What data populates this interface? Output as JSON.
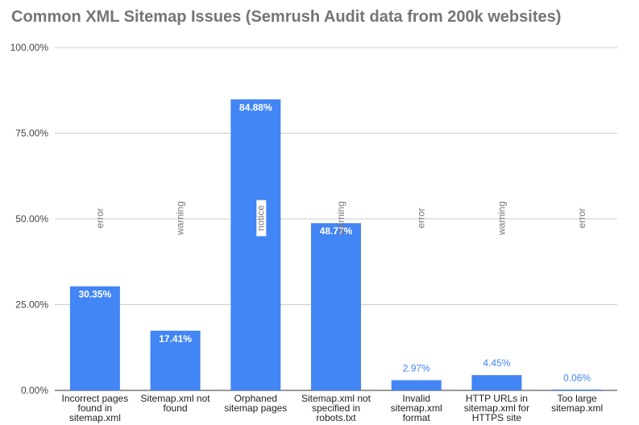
{
  "chart_data": {
    "type": "bar",
    "title": "Common XML Sitemap Issues (Semrush Audit data from 200k websites)",
    "xlabel": "",
    "ylabel": "",
    "ylim": [
      0,
      100
    ],
    "yticks": [
      "0.00%",
      "25.00%",
      "50.00%",
      "75.00%",
      "100.00%"
    ],
    "ytick_values": [
      0,
      25,
      50,
      75,
      100
    ],
    "grid": true,
    "bar_color": "#4285f4",
    "categories": [
      [
        "Incorrect pages",
        "found in",
        "sitemap.xml"
      ],
      [
        "Sitemap.xml not",
        "found"
      ],
      [
        "Orphaned",
        "sitemap pages"
      ],
      [
        "Sitemap.xml not",
        "specified in",
        "robots.txt"
      ],
      [
        "Invalid",
        "sitemap.xml",
        "format"
      ],
      [
        "HTTP URLs in",
        "sitemap.xml for",
        "HTTPS site"
      ],
      [
        "Too large",
        "sitemap.xml"
      ]
    ],
    "values": [
      30.35,
      17.41,
      84.88,
      48.77,
      2.97,
      4.45,
      0.06
    ],
    "data_labels": [
      "30.35%",
      "17.41%",
      "84.88%",
      "48.77%",
      "2.97%",
      "4.45%",
      "0.06%"
    ],
    "annotations": [
      "error",
      "warning",
      "notice",
      "warning",
      "error",
      "warning",
      "error"
    ]
  }
}
